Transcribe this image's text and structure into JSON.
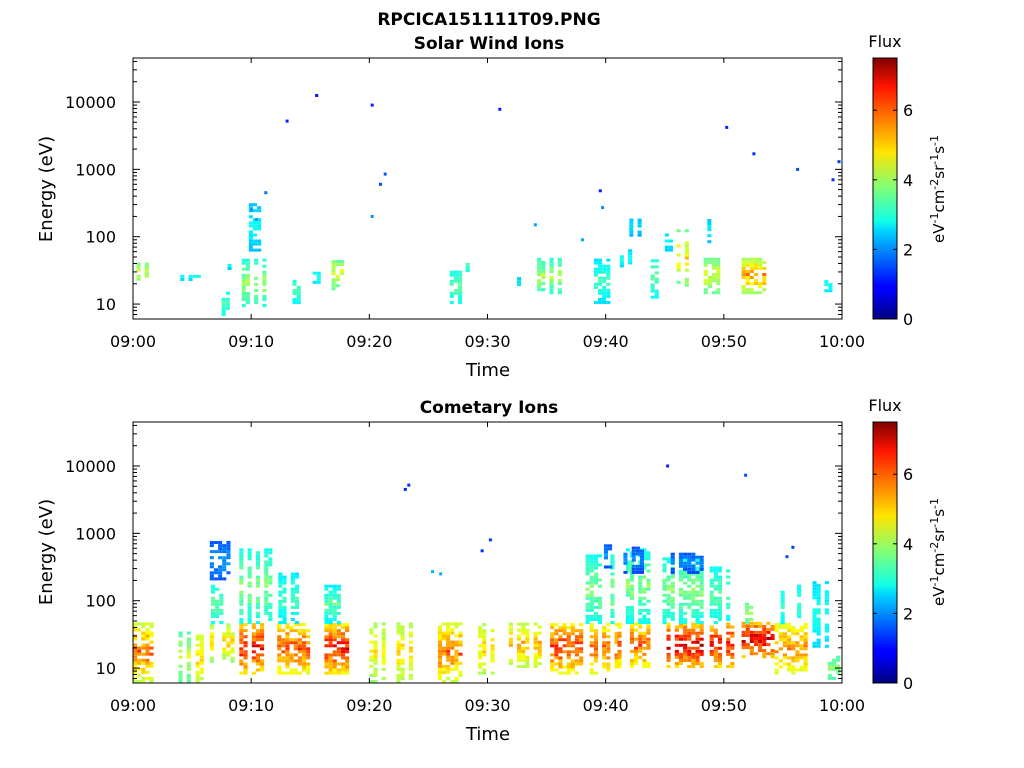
{
  "figure_title": "RPCICA151111T09.PNG",
  "chart_data": [
    {
      "type": "heatmap",
      "title": "Solar Wind Ions",
      "xlabel": "Time",
      "ylabel": "Energy (eV)",
      "x_ticks": [
        "09:00",
        "09:10",
        "09:20",
        "09:30",
        "09:40",
        "09:50",
        "10:00"
      ],
      "xlim": [
        0,
        60
      ],
      "y_scale": "log",
      "y_ticks": [
        "10",
        "100",
        "1000",
        "10000"
      ],
      "ylim": [
        6,
        45000
      ],
      "colorbar": {
        "title": "Flux",
        "label": "eV-1cm-2sr-1s-1",
        "ticks": [
          "0",
          "2",
          "4",
          "6"
        ],
        "range": [
          0,
          7.5
        ],
        "colormap": "jet"
      },
      "clusters": [
        {
          "t": [
            0.3,
            1.2
          ],
          "e": [
            20,
            40
          ],
          "v": [
            3.0,
            4.3
          ]
        },
        {
          "t": [
            4.0,
            5.5
          ],
          "e": [
            22,
            27
          ],
          "v": [
            2.4,
            2.9
          ]
        },
        {
          "t": [
            7.5,
            8.0
          ],
          "e": [
            6,
            15
          ],
          "v": [
            2.6,
            3.3
          ]
        },
        {
          "t": [
            8.0,
            8.5
          ],
          "e": [
            32,
            38
          ],
          "v": [
            2.3,
            2.8
          ]
        },
        {
          "t": [
            9.2,
            11.0
          ],
          "e": [
            9,
            45
          ],
          "v": [
            2.5,
            4.0
          ]
        },
        {
          "t": [
            9.8,
            10.8
          ],
          "e": [
            60,
            300
          ],
          "v": [
            2.0,
            2.9
          ]
        },
        {
          "t": [
            13.5,
            14.2
          ],
          "e": [
            10,
            25
          ],
          "v": [
            2.5,
            3.4
          ]
        },
        {
          "t": [
            15.2,
            15.7
          ],
          "e": [
            20,
            30
          ],
          "v": [
            2.5,
            3.0
          ]
        },
        {
          "t": [
            16.8,
            17.8
          ],
          "e": [
            16,
            45
          ],
          "v": [
            3.0,
            4.5
          ]
        },
        {
          "t": [
            20.4,
            20.7
          ],
          "e": [
            22,
            27
          ],
          "v": [
            2.3,
            2.7
          ]
        },
        {
          "t": [
            23.8,
            24.1
          ],
          "e": [
            9,
            16
          ],
          "v": [
            2.3,
            2.8
          ]
        },
        {
          "t": [
            26.8,
            27.8
          ],
          "e": [
            10,
            30
          ],
          "v": [
            2.6,
            3.5
          ]
        },
        {
          "t": [
            27.8,
            28.2
          ],
          "e": [
            30,
            45
          ],
          "v": [
            2.6,
            3.6
          ]
        },
        {
          "t": [
            30.2,
            30.5
          ],
          "e": [
            22,
            27
          ],
          "v": [
            2.2,
            2.6
          ]
        },
        {
          "t": [
            32.5,
            33.0
          ],
          "e": [
            15,
            25
          ],
          "v": [
            2.3,
            2.7
          ]
        },
        {
          "t": [
            34.2,
            36.5
          ],
          "e": [
            14,
            45
          ],
          "v": [
            2.5,
            4.2
          ]
        },
        {
          "t": [
            39.0,
            40.2
          ],
          "e": [
            10,
            45
          ],
          "v": [
            2.3,
            3.2
          ]
        },
        {
          "t": [
            41.2,
            42.8
          ],
          "e": [
            35,
            60
          ],
          "v": [
            2.3,
            3.0
          ]
        },
        {
          "t": [
            42.0,
            42.8
          ],
          "e": [
            100,
            200
          ],
          "v": [
            2.1,
            2.6
          ]
        },
        {
          "t": [
            43.8,
            44.8
          ],
          "e": [
            12,
            45
          ],
          "v": [
            2.6,
            3.5
          ]
        },
        {
          "t": [
            45.0,
            45.5
          ],
          "e": [
            60,
            110
          ],
          "v": [
            2.3,
            2.8
          ]
        },
        {
          "t": [
            46.0,
            47.0
          ],
          "e": [
            18,
            120
          ],
          "v": [
            3.0,
            4.8
          ]
        },
        {
          "t": [
            48.3,
            49.7
          ],
          "e": [
            14,
            45
          ],
          "v": [
            3.0,
            4.5
          ]
        },
        {
          "t": [
            48.6,
            49.3
          ],
          "e": [
            80,
            170
          ],
          "v": [
            2.2,
            2.8
          ]
        },
        {
          "t": [
            51.5,
            53.8
          ],
          "e": [
            14,
            45
          ],
          "v": [
            3.2,
            5.5
          ]
        },
        {
          "t": [
            58.5,
            59.0
          ],
          "e": [
            15,
            25
          ],
          "v": [
            2.5,
            3.0
          ]
        }
      ],
      "points": [
        {
          "t": 10.0,
          "e": 250,
          "v": 2.0
        },
        {
          "t": 10.4,
          "e": 180,
          "v": 2.1
        },
        {
          "t": 11.2,
          "e": 450,
          "v": 1.8
        },
        {
          "t": 13.0,
          "e": 5200,
          "v": 1.2
        },
        {
          "t": 15.5,
          "e": 12500,
          "v": 1.1
        },
        {
          "t": 20.2,
          "e": 9000,
          "v": 1.2
        },
        {
          "t": 20.2,
          "e": 200,
          "v": 2.0
        },
        {
          "t": 20.9,
          "e": 600,
          "v": 1.5
        },
        {
          "t": 21.3,
          "e": 850,
          "v": 1.6
        },
        {
          "t": 31.0,
          "e": 7800,
          "v": 1.2
        },
        {
          "t": 34.0,
          "e": 150,
          "v": 2.1
        },
        {
          "t": 38.0,
          "e": 90,
          "v": 2.2
        },
        {
          "t": 39.5,
          "e": 480,
          "v": 1.2
        },
        {
          "t": 39.7,
          "e": 270,
          "v": 2.0
        },
        {
          "t": 50.2,
          "e": 4200,
          "v": 1.2
        },
        {
          "t": 52.5,
          "e": 1700,
          "v": 1.3
        },
        {
          "t": 56.2,
          "e": 1000,
          "v": 1.5
        },
        {
          "t": 59.2,
          "e": 700,
          "v": 1.3
        },
        {
          "t": 59.7,
          "e": 1300,
          "v": 1.4
        }
      ]
    },
    {
      "type": "heatmap",
      "title": "Cometary Ions",
      "xlabel": "Time",
      "ylabel": "Energy (eV)",
      "x_ticks": [
        "09:00",
        "09:10",
        "09:20",
        "09:30",
        "09:40",
        "09:50",
        "10:00"
      ],
      "xlim": [
        0,
        60
      ],
      "y_scale": "log",
      "y_ticks": [
        "10",
        "100",
        "1000",
        "10000"
      ],
      "ylim": [
        6,
        45000
      ],
      "colorbar": {
        "title": "Flux",
        "label": "eV-1cm-2sr-1s-1",
        "ticks": [
          "0",
          "2",
          "4",
          "6"
        ],
        "range": [
          0,
          7.5
        ],
        "colormap": "jet"
      },
      "clusters": [
        {
          "t": [
            0.0,
            1.5
          ],
          "e": [
            6,
            45
          ],
          "v": [
            3.5,
            5.8
          ]
        },
        {
          "t": [
            3.5,
            4.6
          ],
          "e": [
            6,
            32
          ],
          "v": [
            3.0,
            4.3
          ]
        },
        {
          "t": [
            5.3,
            6.0
          ],
          "e": [
            6,
            30
          ],
          "v": [
            3.8,
            5.0
          ]
        },
        {
          "t": [
            6.5,
            8.5
          ],
          "e": [
            12,
            45
          ],
          "v": [
            3.2,
            5.0
          ]
        },
        {
          "t": [
            6.6,
            8.0
          ],
          "e": [
            45,
            170
          ],
          "v": [
            2.6,
            3.5
          ]
        },
        {
          "t": [
            6.5,
            8.8
          ],
          "e": [
            200,
            700
          ],
          "v": [
            1.3,
            2.1
          ]
        },
        {
          "t": [
            9.0,
            11.5
          ],
          "e": [
            8,
            45
          ],
          "v": [
            4.0,
            6.5
          ]
        },
        {
          "t": [
            9.0,
            11.5
          ],
          "e": [
            45,
            550
          ],
          "v": [
            2.5,
            3.8
          ]
        },
        {
          "t": [
            12.2,
            14.8
          ],
          "e": [
            8,
            45
          ],
          "v": [
            3.8,
            6.0
          ]
        },
        {
          "t": [
            12.3,
            14.0
          ],
          "e": [
            45,
            250
          ],
          "v": [
            2.3,
            3.3
          ]
        },
        {
          "t": [
            16.2,
            18.2
          ],
          "e": [
            8,
            45
          ],
          "v": [
            3.8,
            6.5
          ]
        },
        {
          "t": [
            16.2,
            17.5
          ],
          "e": [
            45,
            160
          ],
          "v": [
            2.3,
            3.5
          ]
        },
        {
          "t": [
            20.0,
            21.3
          ],
          "e": [
            6,
            45
          ],
          "v": [
            3.3,
            4.8
          ]
        },
        {
          "t": [
            22.3,
            23.6
          ],
          "e": [
            6,
            45
          ],
          "v": [
            3.5,
            5.0
          ]
        },
        {
          "t": [
            25.8,
            28.2
          ],
          "e": [
            6,
            45
          ],
          "v": [
            3.5,
            5.8
          ]
        },
        {
          "t": [
            29.2,
            30.8
          ],
          "e": [
            8,
            45
          ],
          "v": [
            3.5,
            5.0
          ]
        },
        {
          "t": [
            31.8,
            34.5
          ],
          "e": [
            10,
            45
          ],
          "v": [
            3.5,
            5.3
          ]
        },
        {
          "t": [
            35.3,
            37.8
          ],
          "e": [
            8,
            45
          ],
          "v": [
            3.8,
            6.2
          ]
        },
        {
          "t": [
            38.3,
            41.0
          ],
          "e": [
            8,
            45
          ],
          "v": [
            3.8,
            5.8
          ]
        },
        {
          "t": [
            38.3,
            40.5
          ],
          "e": [
            45,
            450
          ],
          "v": [
            2.5,
            3.8
          ]
        },
        {
          "t": [
            39.5,
            40.3
          ],
          "e": [
            300,
            650
          ],
          "v": [
            1.3,
            2.1
          ]
        },
        {
          "t": [
            41.0,
            44.0
          ],
          "e": [
            10,
            45
          ],
          "v": [
            3.8,
            6.0
          ]
        },
        {
          "t": [
            41.0,
            43.5
          ],
          "e": [
            45,
            550
          ],
          "v": [
            2.4,
            3.8
          ]
        },
        {
          "t": [
            41.5,
            43.0
          ],
          "e": [
            250,
            600
          ],
          "v": [
            1.2,
            2.0
          ]
        },
        {
          "t": [
            44.8,
            48.5
          ],
          "e": [
            10,
            45
          ],
          "v": [
            4.0,
            6.8
          ]
        },
        {
          "t": [
            44.8,
            48.0
          ],
          "e": [
            45,
            400
          ],
          "v": [
            2.5,
            3.8
          ]
        },
        {
          "t": [
            45.5,
            48.0
          ],
          "e": [
            250,
            500
          ],
          "v": [
            1.2,
            2.0
          ]
        },
        {
          "t": [
            48.8,
            51.0
          ],
          "e": [
            10,
            45
          ],
          "v": [
            4.0,
            6.5
          ]
        },
        {
          "t": [
            48.8,
            50.5
          ],
          "e": [
            45,
            300
          ],
          "v": [
            2.5,
            3.5
          ]
        },
        {
          "t": [
            51.5,
            54.0
          ],
          "e": [
            14,
            45
          ],
          "v": [
            4.2,
            6.8
          ]
        },
        {
          "t": [
            51.8,
            53.0
          ],
          "e": [
            45,
            90
          ],
          "v": [
            3.2,
            4.0
          ]
        },
        {
          "t": [
            54.3,
            56.8
          ],
          "e": [
            8,
            45
          ],
          "v": [
            3.8,
            5.5
          ]
        },
        {
          "t": [
            54.8,
            56.5
          ],
          "e": [
            45,
            160
          ],
          "v": [
            2.5,
            3.2
          ]
        },
        {
          "t": [
            57.5,
            59.0
          ],
          "e": [
            20,
            180
          ],
          "v": [
            2.3,
            3.0
          ]
        },
        {
          "t": [
            58.8,
            59.6
          ],
          "e": [
            6,
            15
          ],
          "v": [
            3.0,
            3.8
          ]
        }
      ],
      "points": [
        {
          "t": 23.0,
          "e": 4500,
          "v": 1.2
        },
        {
          "t": 23.3,
          "e": 5200,
          "v": 1.3
        },
        {
          "t": 25.3,
          "e": 270,
          "v": 2.3
        },
        {
          "t": 26.0,
          "e": 250,
          "v": 2.2
        },
        {
          "t": 30.2,
          "e": 800,
          "v": 1.4
        },
        {
          "t": 29.5,
          "e": 550,
          "v": 1.3
        },
        {
          "t": 45.2,
          "e": 10000,
          "v": 1.2
        },
        {
          "t": 51.8,
          "e": 7300,
          "v": 1.5
        },
        {
          "t": 55.3,
          "e": 450,
          "v": 1.5
        },
        {
          "t": 55.8,
          "e": 620,
          "v": 1.4
        }
      ]
    }
  ]
}
